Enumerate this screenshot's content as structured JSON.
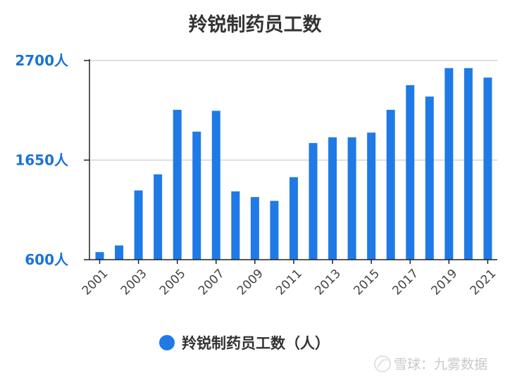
{
  "title": "羚锐制药员工数",
  "colors": {
    "bar": "#1f7ae6",
    "axis_label": "#1a73d9",
    "title": "#333333",
    "grid": "#d4d4d4"
  },
  "legend": {
    "label": "羚锐制药员工数（人）",
    "icon": "blue-circle"
  },
  "watermark": {
    "text": "雪球：九雾数据",
    "icon": "xueqiu-logo-icon"
  },
  "chart_data": {
    "type": "bar",
    "title": "羚锐制药员工数",
    "categories": [
      "2001",
      "2002",
      "2003",
      "2004",
      "2005",
      "2006",
      "2007",
      "2008",
      "2009",
      "2010",
      "2011",
      "2012",
      "2013",
      "2014",
      "2015",
      "2016",
      "2017",
      "2018",
      "2019",
      "2020",
      "2021"
    ],
    "series": [
      {
        "name": "羚锐制药员工数（人）",
        "values": [
          680,
          750,
          1330,
          1500,
          2180,
          1950,
          2170,
          1320,
          1260,
          1220,
          1470,
          1830,
          1890,
          1890,
          1940,
          2180,
          2440,
          2320,
          2620,
          2620,
          2520
        ]
      }
    ],
    "ylim": [
      600,
      2700
    ],
    "yticks": [
      600,
      1650,
      2700
    ],
    "ytick_labels": [
      "600人",
      "1650人",
      "2700人"
    ],
    "xtick_labels": [
      "2001",
      "2003",
      "2005",
      "2007",
      "2009",
      "2011",
      "2013",
      "2015",
      "2017",
      "2019",
      "2021"
    ],
    "grid": true,
    "legend_position": "bottom"
  }
}
